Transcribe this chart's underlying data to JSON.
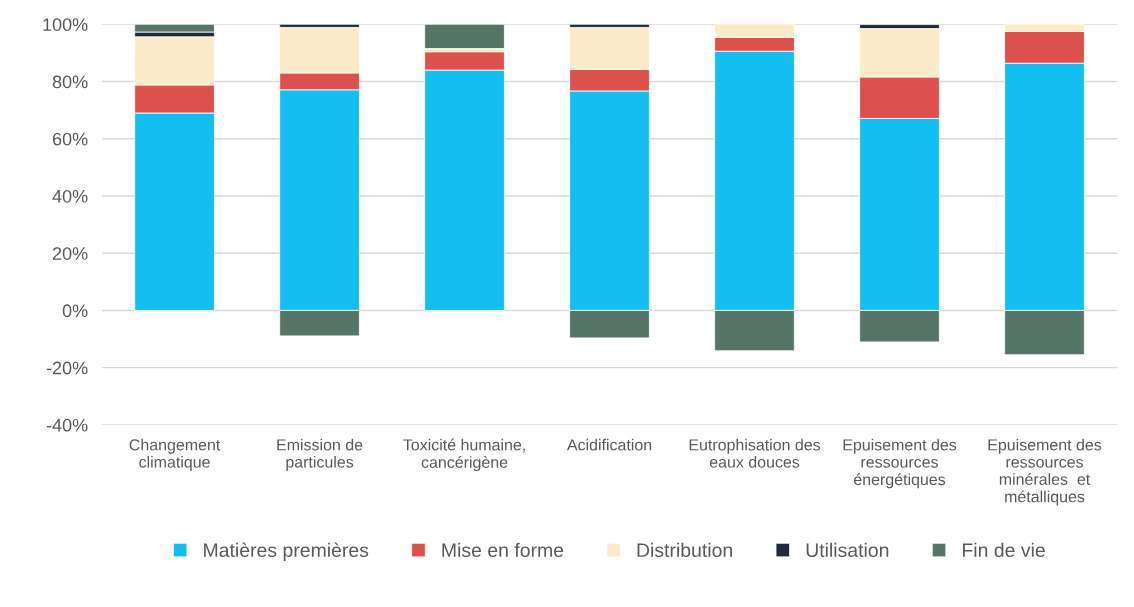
{
  "chart_data": {
    "type": "bar",
    "stacked": true,
    "categories": [
      "Changement\nclimatique",
      "Emission de\nparticules",
      "Toxicité humaine,\ncancérigène",
      "Acidification",
      "Eutrophisation des\neaux douces",
      "Epuisement des\nressources\nénergétiques",
      "Epuisement des\nressources\nminérales  et\nmétalliques"
    ],
    "series": [
      {
        "name": "Matières premières",
        "color": "#13bef0",
        "values": [
          69,
          77.1,
          84,
          76.7,
          90.6,
          67.1,
          86.4
        ]
      },
      {
        "name": "Mise en forme",
        "color": "#dc514d",
        "values": [
          9.8,
          5.9,
          6.4,
          7.5,
          4.8,
          14.5,
          11.1
        ]
      },
      {
        "name": "Distribution",
        "color": "#fbebc9",
        "values": [
          16.8,
          15.9,
          1.1,
          14.7,
          4.6,
          16.9,
          2.4
        ]
      },
      {
        "name": "Utilisation",
        "color": "#1f2a3c",
        "values": [
          1.7,
          1.1,
          null,
          1.1,
          null,
          1.4,
          null
        ]
      },
      {
        "name": "Fin de vie",
        "color": "#557567",
        "values": [
          2.7,
          -8.9,
          8.5,
          -9.6,
          -14.1,
          -11.0,
          -15.5
        ]
      }
    ],
    "ylim": [
      -40,
      100
    ],
    "yticks": [
      {
        "value": -40,
        "label": "-40%"
      },
      {
        "value": -20,
        "label": "-20%"
      },
      {
        "value": 0,
        "label": "0%"
      },
      {
        "value": 20,
        "label": "20%"
      },
      {
        "value": 40,
        "label": "40%"
      },
      {
        "value": 60,
        "label": "60%"
      },
      {
        "value": 80,
        "label": "80%"
      },
      {
        "value": 100,
        "label": "100%"
      }
    ],
    "grid": "y",
    "legend": "bottom"
  }
}
